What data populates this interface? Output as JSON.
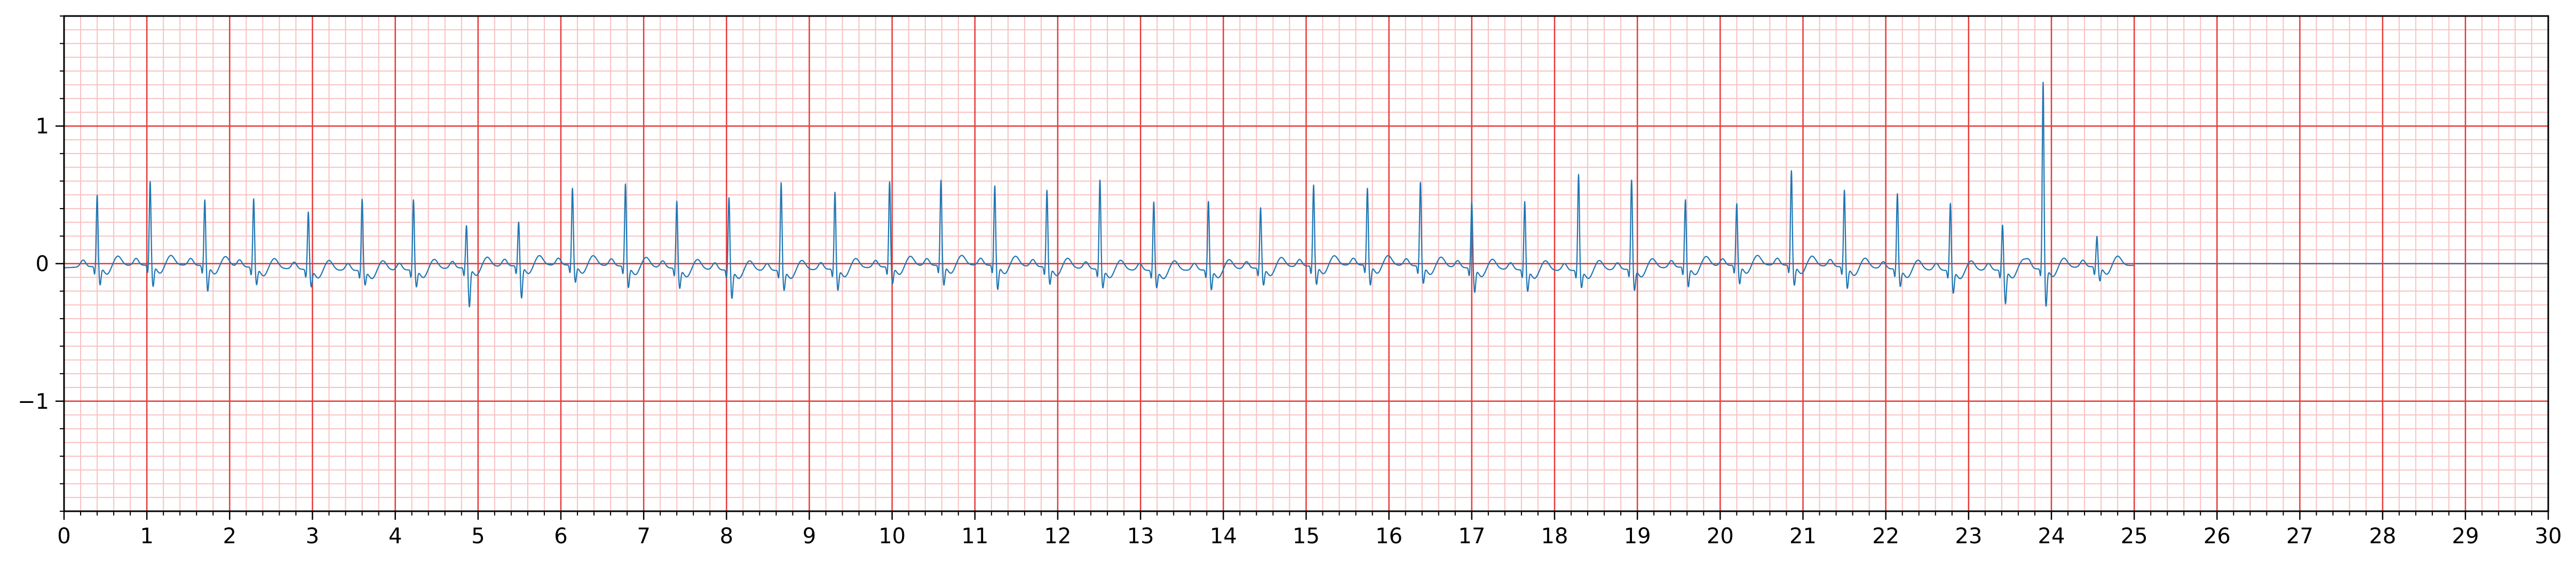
{
  "chart_data": {
    "type": "line",
    "title": "",
    "xlabel": "",
    "ylabel": "",
    "xlim": [
      0,
      30
    ],
    "ylim": [
      -1.8,
      1.8
    ],
    "x_ticks": [
      0,
      1,
      2,
      3,
      4,
      5,
      6,
      7,
      8,
      9,
      10,
      11,
      12,
      13,
      14,
      15,
      16,
      17,
      18,
      19,
      20,
      21,
      22,
      23,
      24,
      25,
      26,
      27,
      28,
      29,
      30
    ],
    "x_tick_labels": [
      "0",
      "1",
      "2",
      "3",
      "4",
      "5",
      "6",
      "7",
      "8",
      "9",
      "10",
      "11",
      "12",
      "13",
      "14",
      "15",
      "16",
      "17",
      "18",
      "19",
      "20",
      "21",
      "22",
      "23",
      "24",
      "25",
      "26",
      "27",
      "28",
      "29",
      "30"
    ],
    "y_ticks": [
      -1,
      0,
      1
    ],
    "y_tick_labels": [
      "−1",
      "0",
      "1"
    ],
    "grid": "on (ECG paper: major grid every 1 s / 1 unit, minor grid every 0.2 s / 0.1 unit)",
    "signal_end_x": 25.0,
    "flat_line_after_signal": true,
    "colors": {
      "trace": "#1f77b4",
      "major_grid": "#e83a3a",
      "minor_grid": "#f9c1c1",
      "axes": "#000000"
    },
    "beats": [
      {
        "t": 0.4,
        "r": 0.52,
        "s": -0.13
      },
      {
        "t": 1.04,
        "r": 0.61,
        "s": -0.15
      },
      {
        "t": 1.7,
        "r": 0.48,
        "s": -0.18
      },
      {
        "t": 2.29,
        "r": 0.5,
        "s": -0.12
      },
      {
        "t": 2.95,
        "r": 0.42,
        "s": -0.12
      },
      {
        "t": 3.6,
        "r": 0.52,
        "s": -0.1
      },
      {
        "t": 4.22,
        "r": 0.51,
        "s": -0.12
      },
      {
        "t": 4.86,
        "r": 0.31,
        "s": -0.28
      },
      {
        "t": 5.49,
        "r": 0.32,
        "s": -0.23
      },
      {
        "t": 6.14,
        "r": 0.56,
        "s": -0.12
      },
      {
        "t": 6.78,
        "r": 0.6,
        "s": -0.15
      },
      {
        "t": 7.4,
        "r": 0.49,
        "s": -0.14
      },
      {
        "t": 8.03,
        "r": 0.53,
        "s": -0.2
      },
      {
        "t": 8.66,
        "r": 0.64,
        "s": -0.14
      },
      {
        "t": 9.31,
        "r": 0.56,
        "s": -0.15
      },
      {
        "t": 9.97,
        "r": 0.62,
        "s": -0.12
      },
      {
        "t": 10.59,
        "r": 0.62,
        "s": -0.14
      },
      {
        "t": 11.24,
        "r": 0.58,
        "s": -0.17
      },
      {
        "t": 11.87,
        "r": 0.56,
        "s": -0.12
      },
      {
        "t": 12.51,
        "r": 0.65,
        "s": -0.13
      },
      {
        "t": 13.16,
        "r": 0.5,
        "s": -0.12
      },
      {
        "t": 13.82,
        "r": 0.5,
        "s": -0.14
      },
      {
        "t": 14.45,
        "r": 0.44,
        "s": -0.12
      },
      {
        "t": 15.09,
        "r": 0.59,
        "s": -0.13
      },
      {
        "t": 15.74,
        "r": 0.56,
        "s": -0.14
      },
      {
        "t": 16.38,
        "r": 0.61,
        "s": -0.12
      },
      {
        "t": 17.0,
        "r": 0.48,
        "s": -0.17
      },
      {
        "t": 17.64,
        "r": 0.5,
        "s": -0.15
      },
      {
        "t": 18.29,
        "r": 0.7,
        "s": -0.12
      },
      {
        "t": 18.93,
        "r": 0.65,
        "s": -0.15
      },
      {
        "t": 19.58,
        "r": 0.49,
        "s": -0.14
      },
      {
        "t": 20.2,
        "r": 0.45,
        "s": -0.13
      },
      {
        "t": 20.86,
        "r": 0.69,
        "s": -0.14
      },
      {
        "t": 21.5,
        "r": 0.56,
        "s": -0.15
      },
      {
        "t": 22.14,
        "r": 0.55,
        "s": -0.12
      },
      {
        "t": 22.78,
        "r": 0.49,
        "s": -0.16
      },
      {
        "t": 23.41,
        "r": 0.33,
        "s": -0.24
      },
      {
        "t": 23.9,
        "r": 1.36,
        "s": -0.27
      },
      {
        "t": 24.55,
        "r": 0.22,
        "s": -0.1
      }
    ]
  }
}
